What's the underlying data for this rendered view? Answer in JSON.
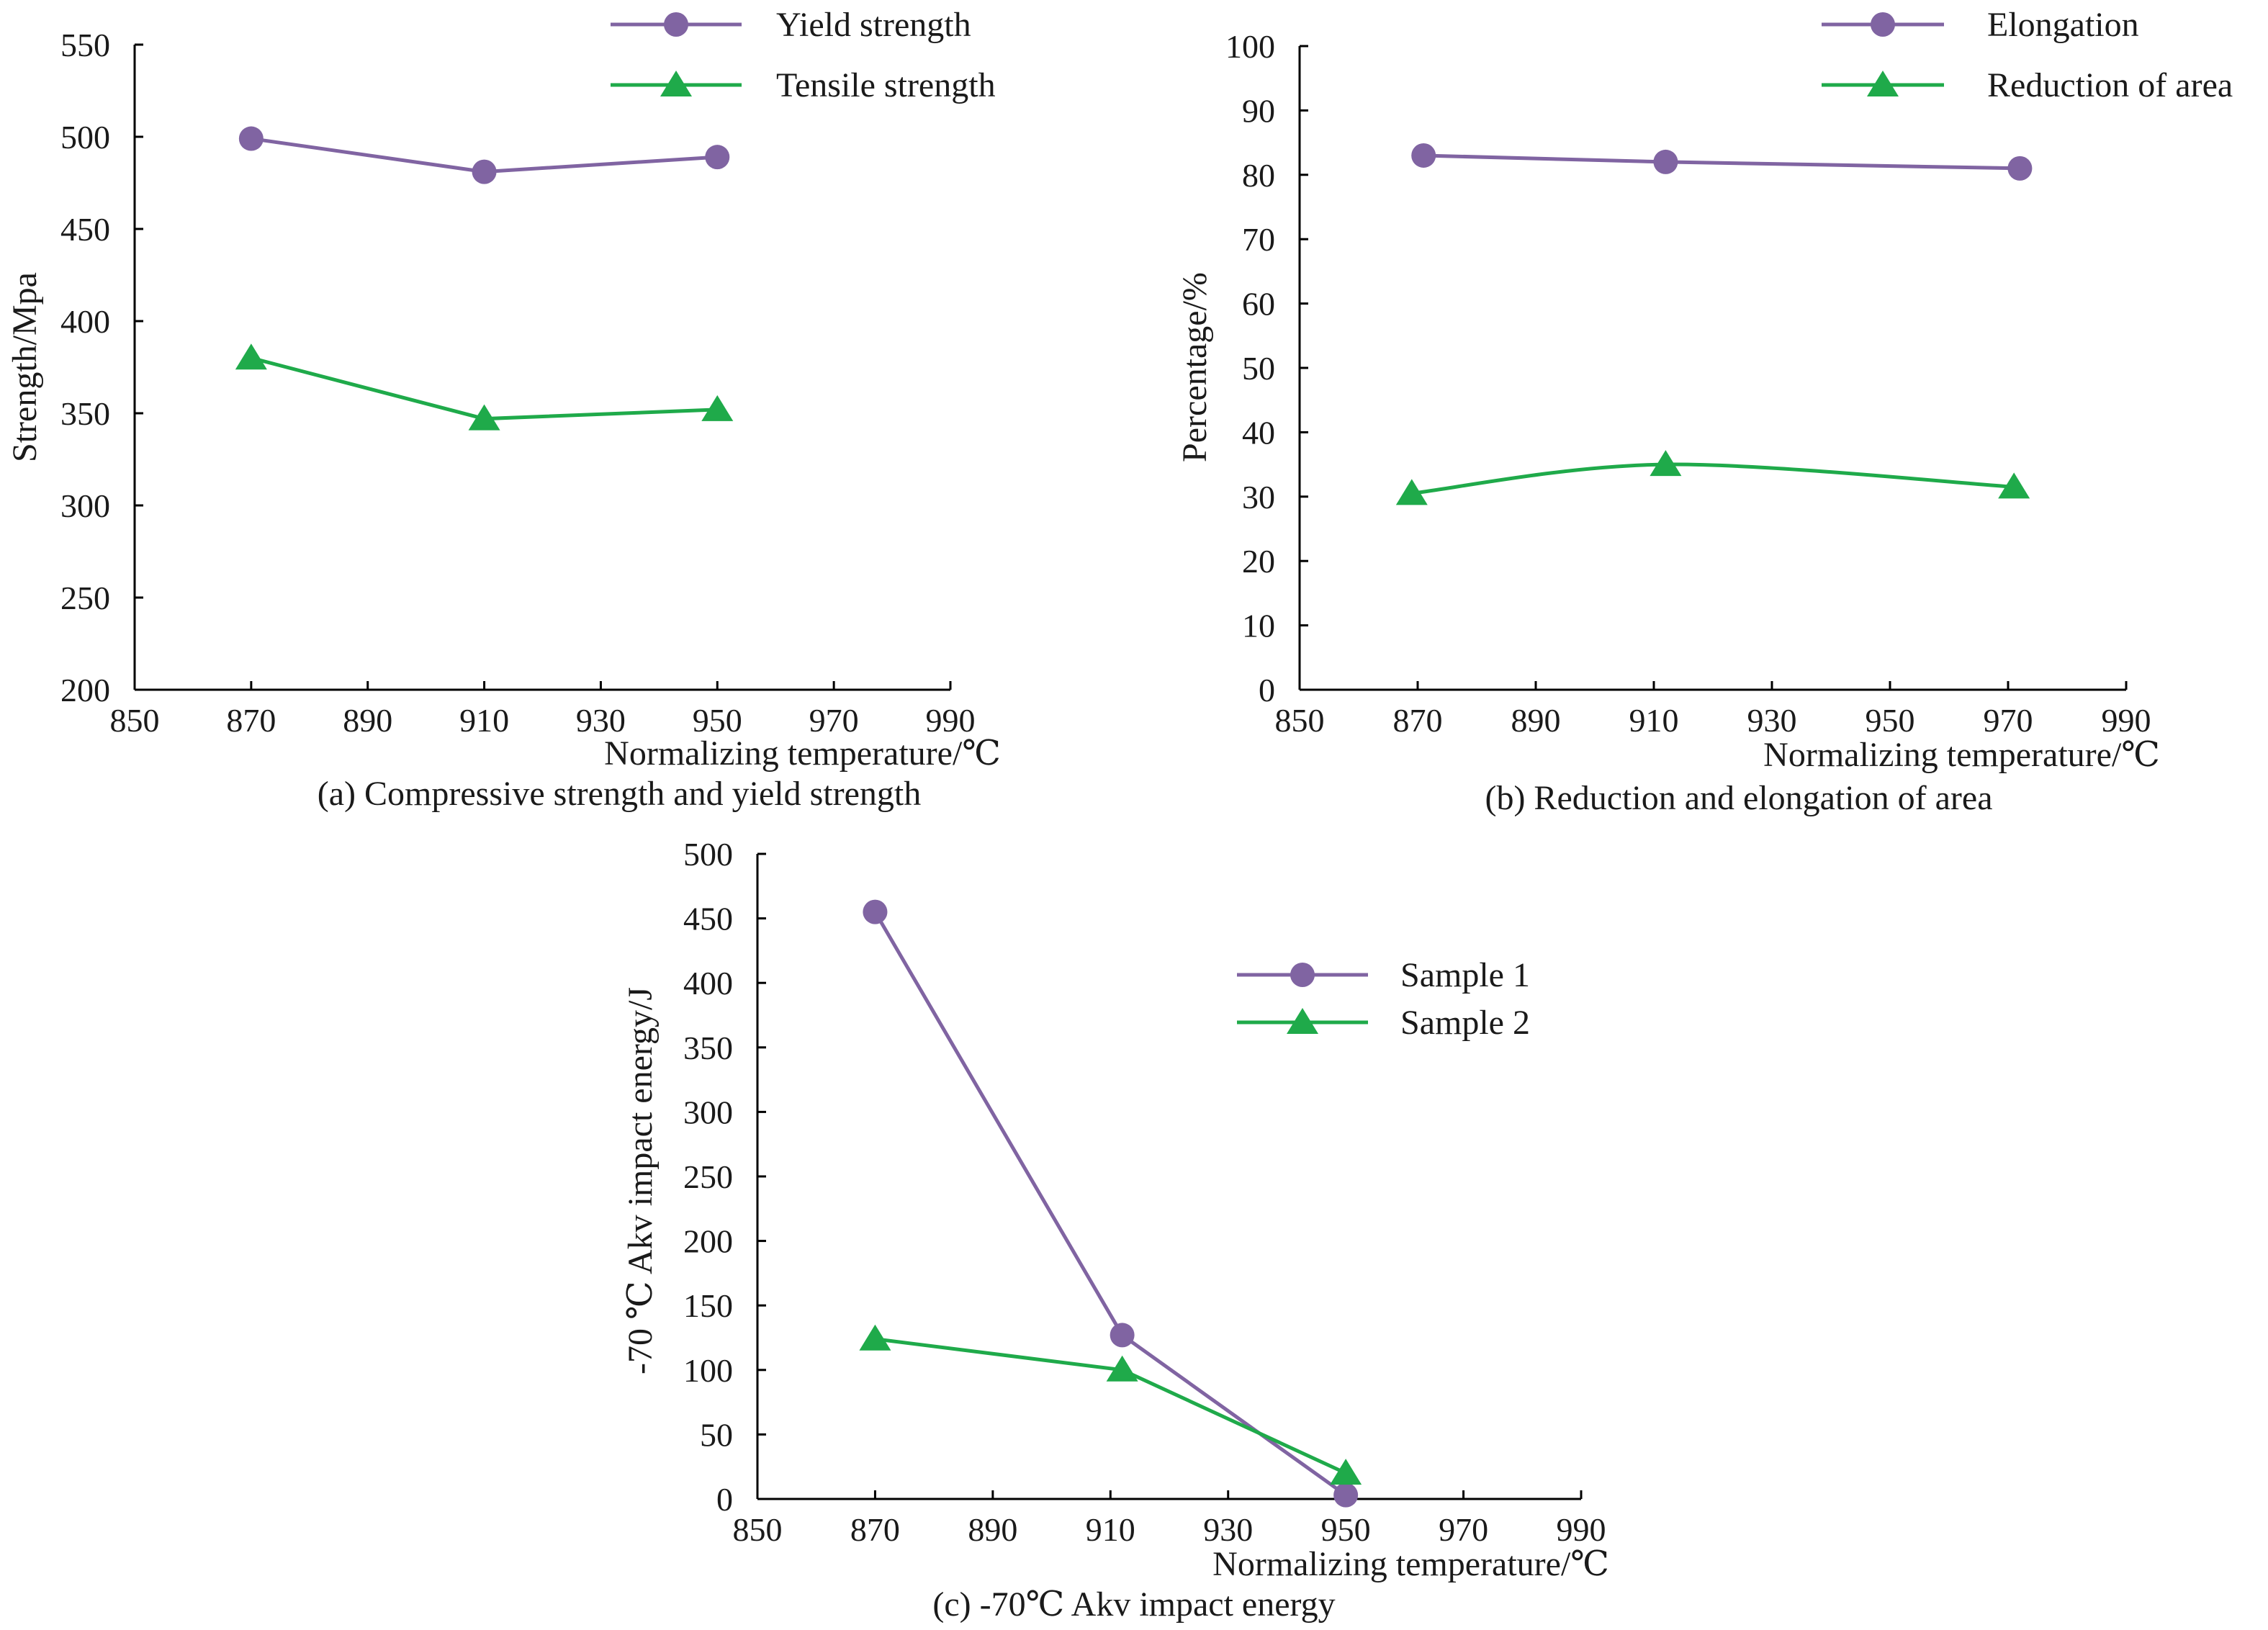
{
  "colors": {
    "series1": "#8064a2",
    "series2": "#1faa4a",
    "axis": "#000000"
  },
  "chart_data": [
    {
      "type": "line",
      "caption": "(a) Compressive strength and yield strength",
      "xlabel": "Normalizing temperature/℃",
      "ylabel": "Strength/Mpa",
      "xlim": [
        850,
        990
      ],
      "ylim": [
        200,
        550
      ],
      "xticks": [
        "850",
        "870",
        "890",
        "910",
        "930",
        "950",
        "970",
        "990"
      ],
      "yticks": [
        "200",
        "250",
        "300",
        "350",
        "400",
        "450",
        "500",
        "550"
      ],
      "legend_position": "top-right",
      "series": [
        {
          "name": "Yield strength",
          "marker": "circle",
          "smooth": false,
          "x": [
            870,
            910,
            950
          ],
          "y": [
            499,
            481,
            489
          ]
        },
        {
          "name": "Tensile strength",
          "marker": "triangle",
          "smooth": false,
          "x": [
            870,
            910,
            950
          ],
          "y": [
            380,
            347,
            352
          ]
        }
      ]
    },
    {
      "type": "line",
      "caption": "(b) Reduction and elongation of area",
      "xlabel": "Normalizing temperature/℃",
      "ylabel": "Percentage/%",
      "xlim": [
        850,
        990
      ],
      "ylim": [
        0,
        100
      ],
      "xticks": [
        "850",
        "870",
        "890",
        "910",
        "930",
        "950",
        "970",
        "990"
      ],
      "yticks": [
        "0",
        "10",
        "20",
        "30",
        "40",
        "50",
        "60",
        "70",
        "80",
        "90",
        "100"
      ],
      "legend_position": "top-right",
      "series": [
        {
          "name": "Elongation",
          "marker": "circle",
          "smooth": false,
          "x": [
            871,
            912,
            972
          ],
          "y": [
            83,
            82,
            81
          ]
        },
        {
          "name": "Reduction of area",
          "marker": "triangle",
          "smooth": true,
          "x": [
            869,
            912,
            971
          ],
          "y": [
            30.5,
            35,
            31.5
          ]
        }
      ]
    },
    {
      "type": "line",
      "caption": "(c) -70℃ Akv impact energy",
      "xlabel": "Normalizing temperature/℃",
      "ylabel": "-70 ℃ Akv impact energy/J",
      "xlim": [
        850,
        990
      ],
      "ylim": [
        0,
        500
      ],
      "xticks": [
        "850",
        "870",
        "890",
        "910",
        "930",
        "950",
        "970",
        "990"
      ],
      "yticks": [
        "0",
        "50",
        "100",
        "150",
        "200",
        "250",
        "300",
        "350",
        "400",
        "450",
        "500"
      ],
      "legend_position": "middle-right",
      "series": [
        {
          "name": "Sample 1",
          "marker": "circle",
          "smooth": false,
          "x": [
            870,
            912,
            950
          ],
          "y": [
            455,
            127,
            3
          ]
        },
        {
          "name": "Sample 2",
          "marker": "triangle",
          "smooth": false,
          "x": [
            870,
            912,
            950
          ],
          "y": [
            124,
            100,
            20
          ]
        }
      ]
    }
  ]
}
